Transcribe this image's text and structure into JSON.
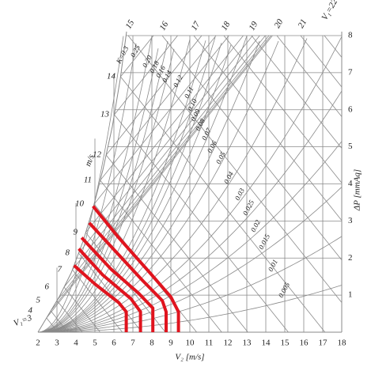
{
  "chart_data": {
    "type": "nomogram",
    "x_label": "V₂ [m/s]",
    "y_label": "ΔP [mmAq]",
    "v1_unit": "m/s",
    "xlim": [
      2,
      18
    ],
    "xticks": [
      2,
      3,
      4,
      5,
      6,
      7,
      8,
      9,
      10,
      11,
      12,
      13,
      14,
      15,
      16,
      17,
      18
    ],
    "ylim": [
      0,
      8
    ],
    "yticks": [
      1,
      2,
      3,
      4,
      5,
      6,
      7,
      8
    ],
    "v1_ticks": [
      {
        "value": 3,
        "label": "V₁=3"
      },
      4,
      5,
      6,
      7,
      8,
      9,
      10,
      11,
      12,
      13,
      14,
      15,
      16,
      17,
      18,
      19,
      20,
      21,
      {
        "value": 22,
        "label": "V₁=22"
      }
    ],
    "k_labels": [
      "K=0.3",
      "0.25",
      "0.20",
      "0.18",
      "0.16",
      "0.14",
      "0.12",
      "0.11",
      "0.10",
      "0.09",
      "0.08",
      "0.07",
      "0.06",
      "0.05",
      "0.04",
      "0.03",
      "0.025",
      "0.02",
      "0.015",
      "0.01",
      "0.005"
    ],
    "grid": true,
    "grid_color": "#8a8a8a",
    "series": [
      {
        "color": "#e0141e",
        "x": [
          4.9,
          6.25,
          7.9,
          9.0,
          9.4,
          9.4
        ],
        "values": [
          3.4,
          2.55,
          1.6,
          0.95,
          0.55,
          0
        ]
      },
      {
        "color": "#e0141e",
        "x": [
          4.7,
          6.05,
          7.5,
          8.55,
          8.75,
          8.75
        ],
        "values": [
          2.95,
          2.2,
          1.4,
          0.85,
          0.55,
          0
        ]
      },
      {
        "color": "#e0141e",
        "x": [
          4.3,
          5.85,
          7.3,
          8.05,
          8.05
        ],
        "values": [
          2.55,
          1.7,
          1.05,
          0.65,
          0
        ]
      },
      {
        "color": "#e0141e",
        "x": [
          4.15,
          5.4,
          6.9,
          7.4,
          7.4
        ],
        "values": [
          2.25,
          1.55,
          0.9,
          0.55,
          0
        ]
      },
      {
        "color": "#e0141e",
        "x": [
          3.9,
          5.0,
          6.25,
          6.65,
          6.65
        ],
        "values": [
          1.8,
          1.3,
          0.8,
          0.55,
          0
        ]
      }
    ]
  }
}
